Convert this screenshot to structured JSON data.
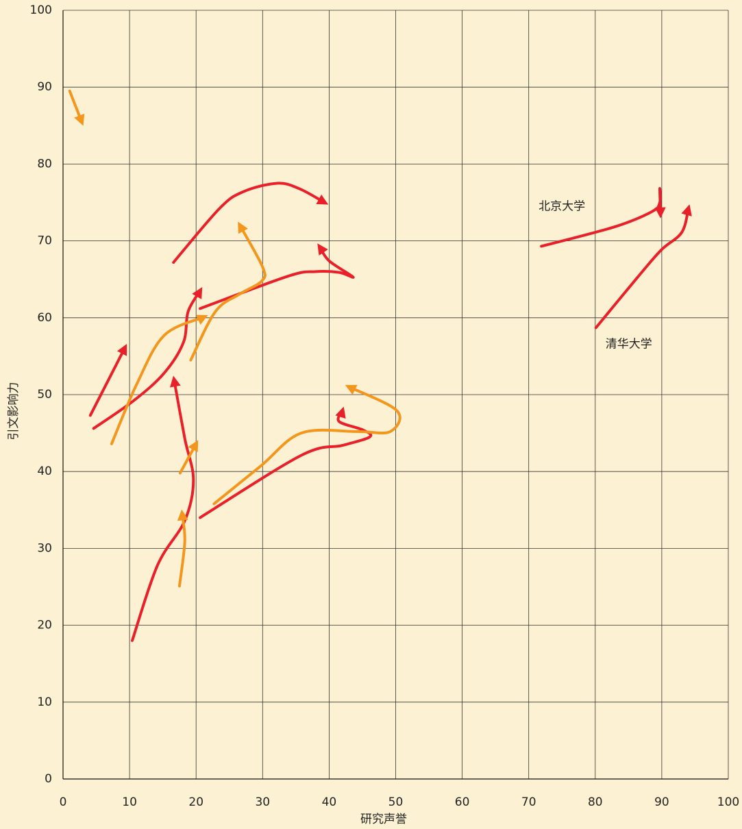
{
  "chart_data": {
    "type": "line",
    "xlabel": "研究声誉",
    "ylabel": "引文影响力",
    "xlim": [
      0,
      100
    ],
    "ylim": [
      0,
      100
    ],
    "xticks": [
      0,
      10,
      20,
      30,
      40,
      50,
      60,
      70,
      80,
      90,
      100
    ],
    "yticks": [
      0,
      10,
      20,
      30,
      40,
      50,
      60,
      70,
      80,
      90,
      100
    ],
    "grid": true,
    "series": [
      {
        "color": "#f2961e",
        "x": [
          1.0,
          2.8
        ],
        "values": [
          89.5,
          85.5
        ]
      },
      {
        "color": "#e8202a",
        "x": [
          16.6,
          23.5,
          27.1,
          32.2,
          35.5,
          39.3
        ],
        "values": [
          67.2,
          74.2,
          76.4,
          77.5,
          76.8,
          75.0
        ]
      },
      {
        "color": "#e8202a",
        "x": [
          20.6,
          33.8,
          37.9,
          41.5,
          43.6,
          40.0,
          38.6
        ],
        "values": [
          61.2,
          65.4,
          66.0,
          65.9,
          65.3,
          67.4,
          69.2
        ]
      },
      {
        "color": "#f2961e",
        "x": [
          19.2,
          22.9,
          26.6,
          29.9,
          30.0,
          26.6
        ],
        "values": [
          54.5,
          60.8,
          63.1,
          64.8,
          66.6,
          72.0
        ]
      },
      {
        "color": "#e8202a",
        "x": [
          4.1,
          9.3
        ],
        "values": [
          47.3,
          56.1
        ]
      },
      {
        "color": "#e8202a",
        "x": [
          4.6,
          10.6,
          15.2,
          18.1,
          18.8,
          20.6
        ],
        "values": [
          45.6,
          49.2,
          52.8,
          56.8,
          60.8,
          63.5
        ]
      },
      {
        "color": "#f2961e",
        "x": [
          7.3,
          11.1,
          15.2,
          21.2
        ],
        "values": [
          43.6,
          51.4,
          57.7,
          60.1
        ]
      },
      {
        "color": "#e8202a",
        "x": [
          10.4,
          14.2,
          18.3,
          19.6,
          18.3,
          16.7
        ],
        "values": [
          18.0,
          27.8,
          33.6,
          38.9,
          44.3,
          51.9
        ]
      },
      {
        "color": "#f2961e",
        "x": [
          17.6,
          20.0
        ],
        "values": [
          39.8,
          43.6
        ]
      },
      {
        "color": "#f2961e",
        "x": [
          17.5,
          18.3,
          17.9
        ],
        "values": [
          25.1,
          30.9,
          34.5
        ]
      },
      {
        "color": "#e8202a",
        "x": [
          20.6,
          35.8,
          42.0,
          46.1,
          45.1,
          41.5,
          42.0
        ],
        "values": [
          34.0,
          42.1,
          43.4,
          44.5,
          45.4,
          46.5,
          47.9
        ]
      },
      {
        "color": "#f2961e",
        "x": [
          22.7,
          29.7,
          35.8,
          44.1,
          49.2,
          50.2,
          43.0
        ],
        "values": [
          35.8,
          40.7,
          45.0,
          45.2,
          45.2,
          47.9,
          51.0
        ]
      },
      {
        "name": "北京大学",
        "color": "#e8202a",
        "x": [
          71.9,
          82.8,
          88.5,
          89.7,
          89.7,
          89.8
        ],
        "values": [
          69.3,
          71.8,
          73.8,
          75.0,
          76.8,
          73.5
        ]
      },
      {
        "name": "清华大学",
        "color": "#e8202a",
        "x": [
          80.1,
          86.3,
          89.9,
          93.0,
          94.0
        ],
        "values": [
          58.7,
          65.2,
          68.8,
          71.1,
          74.2
        ]
      }
    ]
  }
}
